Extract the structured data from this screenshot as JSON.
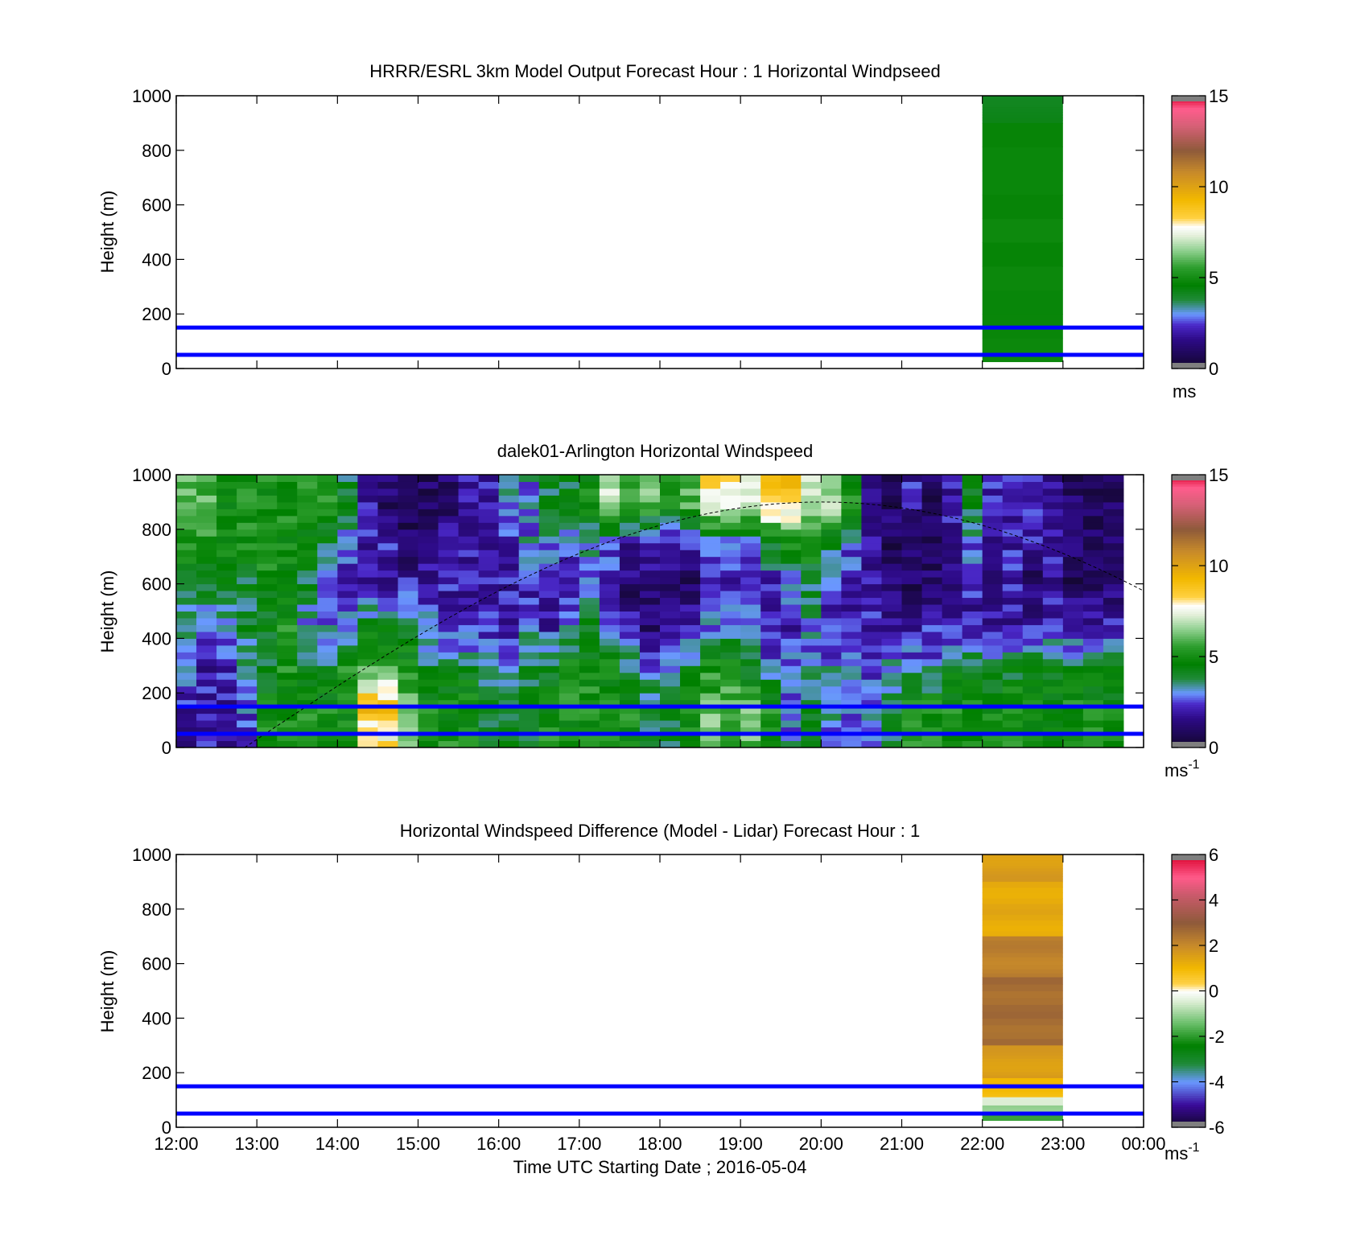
{
  "figure": {
    "time_axis_label": "Time UTC  Starting Date ; 2016-05-04",
    "x_ticks": [
      "12:00",
      "13:00",
      "14:00",
      "15:00",
      "16:00",
      "17:00",
      "18:00",
      "19:00",
      "20:00",
      "21:00",
      "22:00",
      "23:00",
      "00:00"
    ]
  },
  "chart_data": [
    {
      "type": "heatmap",
      "title": "HRRR/ESRL 3km Model Output   Forecast Hour : 1 Horizontal Windpseed",
      "xlabel": "",
      "ylabel": "Height (m)",
      "xlim": [
        12,
        24
      ],
      "ylim": [
        0,
        1000
      ],
      "y_ticks": [
        "0",
        "200",
        "400",
        "600",
        "800",
        "1000"
      ],
      "colorbar": {
        "ticks": [
          "0",
          "5",
          "10",
          "15"
        ],
        "range": [
          0,
          15
        ],
        "unit": "ms",
        "unit_sup": ""
      },
      "reference_lines_m": [
        50,
        150
      ],
      "columns": [
        {
          "t0": 22.0,
          "t1": 23.0,
          "z0": 25,
          "z1": 1000,
          "layers": [
            {
              "z0": 900,
              "z1": 1000,
              "value": 4.2
            },
            {
              "z0": 25,
              "z1": 900,
              "value": 4.8
            }
          ]
        }
      ]
    },
    {
      "type": "heatmap",
      "title": "dalek01-Arlington  Horizontal Windspeed",
      "xlabel": "",
      "ylabel": "Height (m)",
      "xlim": [
        12,
        24
      ],
      "ylim": [
        0,
        1000
      ],
      "y_ticks": [
        "0",
        "200",
        "400",
        "600",
        "800",
        "1000"
      ],
      "colorbar": {
        "ticks": [
          "0",
          "5",
          "10",
          "15"
        ],
        "range": [
          0,
          15
        ],
        "unit": "ms",
        "unit_sup": "-1"
      },
      "reference_lines_m": [
        50,
        150
      ],
      "data_end_time": 23.85,
      "column_hours": 0.25,
      "column_profiles_ms": {
        "note_heights_m": [
          50,
          150,
          300,
          450,
          600,
          750,
          900
        ],
        "values": [
          [
            2,
            2,
            3,
            3,
            4,
            5,
            6
          ],
          [
            2,
            2,
            2,
            3,
            4,
            5,
            6
          ],
          [
            2,
            2,
            2,
            3,
            4,
            5,
            5
          ],
          [
            2,
            3,
            3,
            4,
            4,
            5,
            5
          ],
          [
            5,
            5,
            4,
            4,
            5,
            5,
            5
          ],
          [
            5,
            5,
            5,
            5,
            5,
            5,
            5
          ],
          [
            5,
            5,
            4,
            3,
            4,
            5,
            5
          ],
          [
            5,
            5,
            4,
            3,
            3,
            4,
            5
          ],
          [
            5,
            5,
            5,
            3,
            2,
            3,
            4
          ],
          [
            8,
            9,
            6,
            4,
            2,
            2,
            2
          ],
          [
            8,
            9,
            6,
            4,
            2,
            2,
            1
          ],
          [
            6,
            6,
            5,
            4,
            2,
            1,
            1
          ],
          [
            5,
            5,
            4,
            3,
            2,
            1,
            1
          ],
          [
            5,
            5,
            4,
            2,
            2,
            2,
            1
          ],
          [
            5,
            5,
            4,
            2,
            2,
            2,
            2
          ],
          [
            4,
            4,
            3,
            2,
            2,
            2,
            2
          ],
          [
            4,
            4,
            3,
            2,
            2,
            2,
            3
          ],
          [
            4,
            4,
            4,
            3,
            2,
            3,
            3
          ],
          [
            5,
            5,
            4,
            2,
            2,
            3,
            4
          ],
          [
            5,
            5,
            5,
            3,
            2,
            3,
            4
          ],
          [
            5,
            5,
            5,
            4,
            3,
            3,
            5
          ],
          [
            5,
            5,
            5,
            2,
            2,
            3,
            7
          ],
          [
            5,
            5,
            4,
            2,
            1,
            2,
            6
          ],
          [
            4,
            4,
            3,
            1,
            1,
            2,
            6
          ],
          [
            4,
            4,
            3,
            2,
            1,
            2,
            5
          ],
          [
            5,
            5,
            4,
            2,
            1,
            2,
            6
          ],
          [
            6,
            6,
            5,
            3,
            2,
            3,
            8
          ],
          [
            6,
            6,
            5,
            3,
            2,
            3,
            8
          ],
          [
            6,
            6,
            4,
            3,
            2,
            3,
            7
          ],
          [
            5,
            5,
            3,
            2,
            2,
            4,
            9
          ],
          [
            3,
            3,
            3,
            2,
            3,
            5,
            9
          ],
          [
            4,
            4,
            3,
            3,
            4,
            5,
            7
          ],
          [
            3,
            3,
            3,
            2,
            3,
            4,
            7
          ],
          [
            3,
            3,
            3,
            2,
            2,
            3,
            5
          ],
          [
            3,
            3,
            2,
            2,
            2,
            2,
            2
          ],
          [
            4,
            4,
            3,
            2,
            1,
            1,
            1
          ],
          [
            5,
            5,
            3,
            2,
            1,
            1,
            2
          ],
          [
            5,
            5,
            3,
            2,
            1,
            1,
            1
          ],
          [
            5,
            5,
            4,
            2,
            1,
            2,
            2
          ],
          [
            5,
            5,
            4,
            2,
            2,
            3,
            4
          ],
          [
            5,
            5,
            4,
            2,
            1,
            2,
            2
          ],
          [
            5,
            5,
            4,
            2,
            2,
            2,
            2
          ],
          [
            5,
            5,
            4,
            2,
            1,
            2,
            2
          ],
          [
            5,
            5,
            4,
            2,
            2,
            2,
            2
          ],
          [
            5,
            5,
            4,
            2,
            1,
            1,
            1
          ],
          [
            5,
            5,
            4,
            2,
            1,
            1,
            1
          ],
          [
            5,
            5,
            4,
            2,
            1,
            1,
            1
          ]
        ]
      },
      "solar_curve": {
        "times": [
          12.85,
          20.0,
          24.0
        ],
        "heights_m": [
          0,
          900,
          550
        ]
      }
    },
    {
      "type": "heatmap",
      "title": "Horizontal Windspeed Difference (Model - Lidar) Forecast Hour : 1",
      "xlabel": "Time UTC  Starting Date ; 2016-05-04",
      "ylabel": "Height (m)",
      "xlim": [
        12,
        24
      ],
      "ylim": [
        0,
        1000
      ],
      "y_ticks": [
        "0",
        "200",
        "400",
        "600",
        "800",
        "1000"
      ],
      "colorbar": {
        "ticks": [
          "-6",
          "-4",
          "-2",
          "0",
          "2",
          "4",
          "6"
        ],
        "range": [
          -6,
          6
        ],
        "unit": "ms",
        "unit_sup": "-1"
      },
      "reference_lines_m": [
        50,
        150
      ],
      "columns": [
        {
          "t0": 22.0,
          "t1": 23.0,
          "z0": 25,
          "z1": 1000,
          "layers": [
            {
              "z0": 900,
              "z1": 1000,
              "value": 1.6
            },
            {
              "z0": 700,
              "z1": 900,
              "value": 1.3
            },
            {
              "z0": 550,
              "z1": 700,
              "value": 2.2
            },
            {
              "z0": 300,
              "z1": 550,
              "value": 2.6
            },
            {
              "z0": 180,
              "z1": 300,
              "value": 1.6
            },
            {
              "z0": 110,
              "z1": 180,
              "value": 0.9
            },
            {
              "z0": 80,
              "z1": 110,
              "value": -0.3
            },
            {
              "z0": 50,
              "z1": 80,
              "value": -1.0
            },
            {
              "z0": 25,
              "z1": 50,
              "value": -2.0
            }
          ]
        }
      ]
    }
  ]
}
